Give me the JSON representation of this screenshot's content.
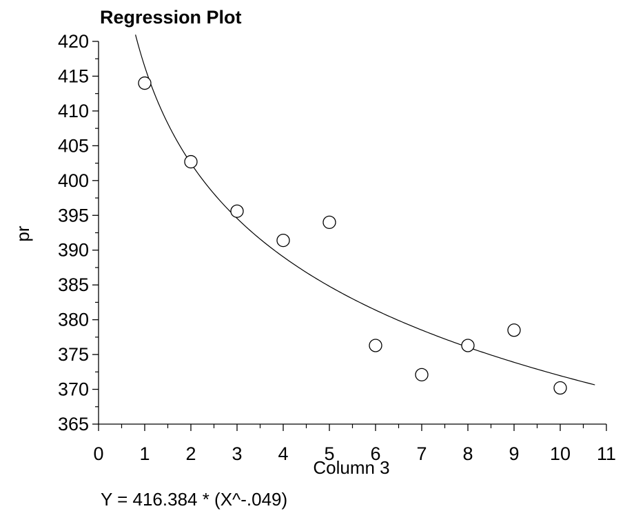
{
  "chart_data": {
    "type": "scatter",
    "title": "Regression Plot",
    "xlabel": "Column 3",
    "ylabel": "pr",
    "xlim": [
      0,
      11
    ],
    "ylim": [
      365,
      420
    ],
    "x_ticks": [
      "0",
      "1",
      "2",
      "3",
      "4",
      "5",
      "6",
      "7",
      "8",
      "9",
      "10",
      "11"
    ],
    "y_ticks": [
      "365",
      "370",
      "375",
      "380",
      "385",
      "390",
      "395",
      "400",
      "405",
      "410",
      "415",
      "420"
    ],
    "points": [
      {
        "x": 1,
        "y": 414.0
      },
      {
        "x": 2,
        "y": 402.7
      },
      {
        "x": 3,
        "y": 395.6
      },
      {
        "x": 4,
        "y": 391.4
      },
      {
        "x": 5,
        "y": 394.0
      },
      {
        "x": 6,
        "y": 376.3
      },
      {
        "x": 7,
        "y": 372.1
      },
      {
        "x": 8,
        "y": 376.3
      },
      {
        "x": 9,
        "y": 378.5
      },
      {
        "x": 10,
        "y": 370.2
      }
    ],
    "fit": {
      "model": "power",
      "a": 416.384,
      "b": -0.049,
      "x_range": [
        0.8,
        10.75
      ]
    },
    "equation": "Y = 416.384 * (X^-.049)",
    "grid": false,
    "legend": "none"
  }
}
